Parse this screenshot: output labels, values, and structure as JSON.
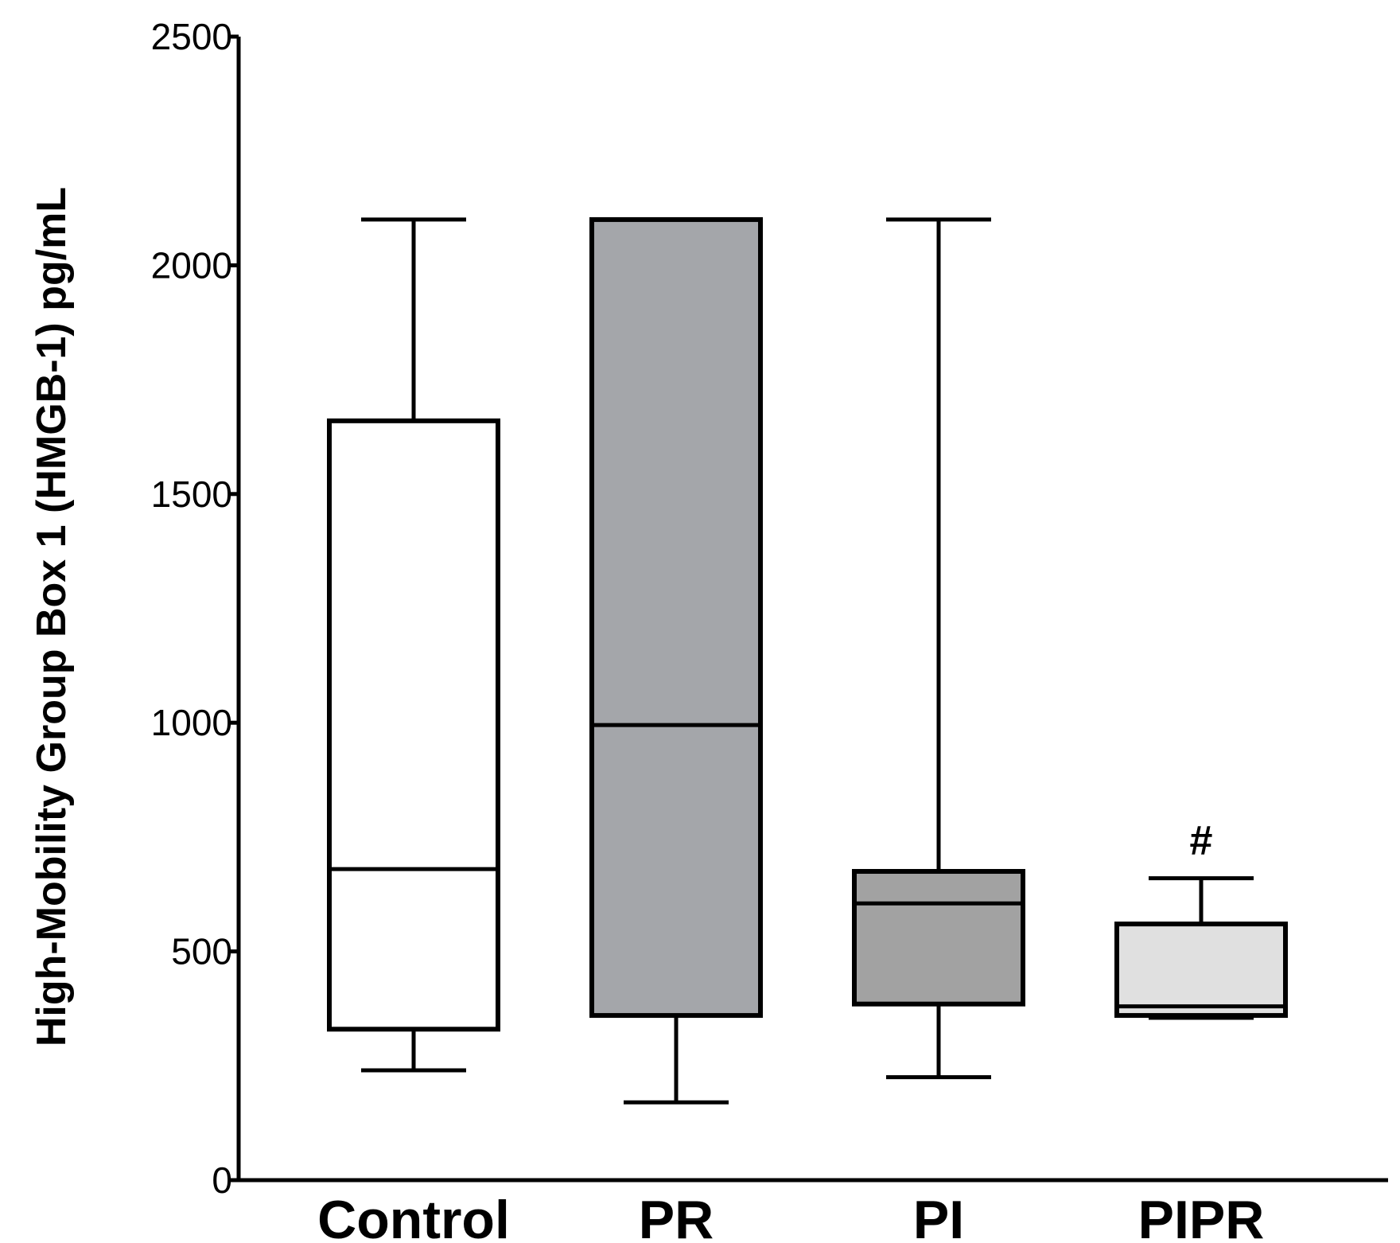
{
  "chart_data": {
    "type": "box",
    "title": "",
    "xlabel": "",
    "ylabel": "High-Mobility Group Box 1 (HMGB-1) pg/mL",
    "ylim": [
      0,
      2500
    ],
    "yticks": [
      0,
      500,
      1000,
      1500,
      2000,
      2500
    ],
    "ytick_labels": [
      "0",
      "500",
      "1000",
      "1500",
      "2000",
      "2500"
    ],
    "grid": false,
    "categories": [
      "Control",
      "PR",
      "PI",
      "PIPR"
    ],
    "boxes": [
      {
        "category": "Control",
        "min": 240,
        "q1": 330,
        "median": 680,
        "q3": 1660,
        "max": 2100,
        "fill": "#ffffff"
      },
      {
        "category": "PR",
        "min": 170,
        "q1": 360,
        "median": 995,
        "q3": 2100,
        "max": 2100,
        "fill": "#a4a6aa"
      },
      {
        "category": "PI",
        "min": 225,
        "q1": 385,
        "median": 605,
        "q3": 675,
        "max": 2100,
        "fill": "#a2a2a2"
      },
      {
        "category": "PIPR",
        "min": 355,
        "q1": 360,
        "median": 380,
        "q3": 560,
        "max": 660,
        "fill": "#e0e0e0",
        "annotation": "#"
      }
    ]
  }
}
